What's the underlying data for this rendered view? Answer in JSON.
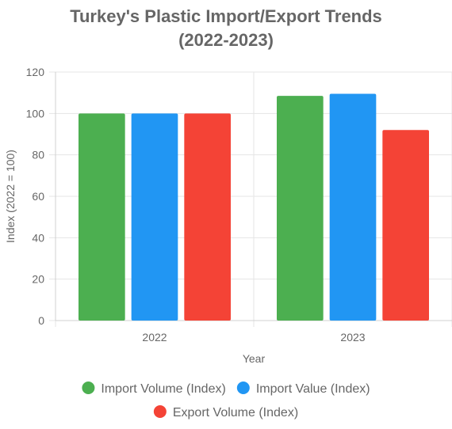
{
  "title_line1": "Turkey's Plastic Import/Export Trends",
  "title_line2": "(2022-2023)",
  "chart_data": {
    "type": "bar",
    "title": "Turkey's Plastic Import/Export Trends (2022-2023)",
    "xlabel": "Year",
    "ylabel": "Index (2022 = 100)",
    "categories": [
      "2022",
      "2023"
    ],
    "ylim": [
      0,
      120
    ],
    "yticks": [
      0,
      20,
      40,
      60,
      80,
      100,
      120
    ],
    "grid": true,
    "legend_position": "bottom",
    "series": [
      {
        "name": "Import Volume (Index)",
        "color": "#4caf50",
        "values": [
          100,
          108.5
        ]
      },
      {
        "name": "Import Value (Index)",
        "color": "#2196f3",
        "values": [
          100,
          109.5
        ]
      },
      {
        "name": "Export Volume (Index)",
        "color": "#f44336",
        "values": [
          100,
          92
        ]
      }
    ]
  }
}
